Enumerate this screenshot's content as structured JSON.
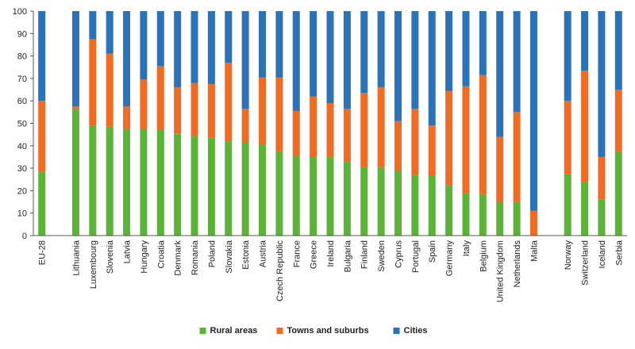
{
  "chart_data": {
    "type": "bar",
    "stacked": true,
    "categories": [
      "EU-28",
      "",
      "Lithuania",
      "Luxembourg",
      "Slovenia",
      "Latvia",
      "Hungary",
      "Croatia",
      "Denmark",
      "Romania",
      "Poland",
      "Slovakia",
      "Estonia",
      "Austria",
      "Czech Republic",
      "France",
      "Greece",
      "Ireland",
      "Bulgaria",
      "Finland",
      "Sweden",
      "Cyprus",
      "Portugal",
      "Spain",
      "Germany",
      "Italy",
      "Belgium",
      "United Kingdom",
      "Netherlands",
      "Malta",
      "",
      "Norway",
      "Switzerland",
      "Iceland",
      "Serbia"
    ],
    "series": [
      {
        "name": "Rural areas",
        "color": "#5bb337",
        "values": [
          28.5,
          null,
          56.5,
          49,
          48.5,
          47.5,
          47.5,
          47,
          45.5,
          44.5,
          43.5,
          42,
          41.5,
          40.5,
          37.5,
          35.5,
          35,
          35,
          33,
          30.5,
          30.5,
          29,
          27,
          26.5,
          22.5,
          19,
          18.5,
          15,
          15,
          0,
          null,
          27.5,
          24,
          16,
          37.5
        ]
      },
      {
        "name": "Towns and suburbs",
        "color": "#f26b22",
        "values": [
          31.5,
          null,
          1,
          38.5,
          32.5,
          10,
          22,
          28.5,
          20.5,
          23.5,
          24,
          35,
          15,
          30,
          33,
          20,
          27,
          24,
          23.5,
          33,
          35.5,
          22,
          29.5,
          22.5,
          42,
          47.5,
          53,
          29,
          40,
          11,
          null,
          32.5,
          49.5,
          19,
          27.5
        ]
      },
      {
        "name": "Cities",
        "color": "#2b72b9",
        "values": [
          40,
          null,
          42.5,
          12.5,
          19,
          42.5,
          30.5,
          24.5,
          34,
          32,
          32.5,
          23,
          43.5,
          29.5,
          29.5,
          44.5,
          38,
          41,
          43.5,
          36.5,
          34,
          49,
          43.5,
          51,
          35.5,
          33.5,
          28.5,
          56,
          45,
          89,
          null,
          40,
          26.5,
          65,
          35
        ]
      }
    ],
    "ylim": [
      0,
      100
    ],
    "yticks": [
      "0",
      "10",
      "20",
      "30",
      "40",
      "50",
      "60",
      "70",
      "80",
      "90",
      "100"
    ],
    "title": "",
    "xlabel": "",
    "ylabel": "",
    "legend_position": "bottom",
    "grid": false
  }
}
